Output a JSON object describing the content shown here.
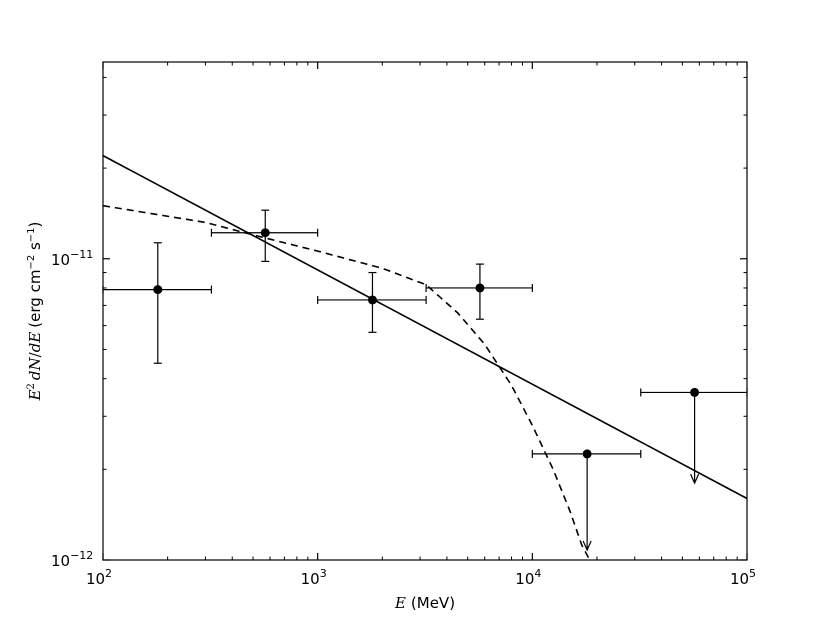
{
  "chart_data": {
    "type": "scatter",
    "title": "",
    "x_scale": "log",
    "y_scale": "log",
    "xlim": [
      100,
      100000
    ],
    "ylim": [
      1e-12,
      4.5e-11
    ],
    "grid": false,
    "x_ticks": [
      {
        "value": 100,
        "base": "10",
        "exp": "2"
      },
      {
        "value": 1000,
        "base": "10",
        "exp": "3"
      },
      {
        "value": 10000,
        "base": "10",
        "exp": "4"
      },
      {
        "value": 100000,
        "base": "10",
        "exp": "5"
      }
    ],
    "y_ticks": [
      {
        "value": 1e-12,
        "base": "10",
        "exp": "−12"
      },
      {
        "value": 1e-11,
        "base": "10",
        "exp": "−11"
      }
    ],
    "xlabel": {
      "symbol": "E",
      "unit": "(MeV)"
    },
    "ylabel": {
      "E": "E",
      "sq": "2",
      "dN": "dN",
      "slash": "/",
      "dE": "dE",
      "unit_pre": "(erg cm",
      "exp1": "−2",
      "unit_mid": " s",
      "exp2": "−1",
      "unit_post": ")"
    },
    "points": [
      {
        "x": 180,
        "y": 7.9e-12,
        "xlo": 100,
        "xhi": 320,
        "ylo": 4.5e-12,
        "yhi": 1.13e-11
      },
      {
        "x": 570,
        "y": 1.22e-11,
        "xlo": 320,
        "xhi": 1000,
        "ylo": 9.8e-12,
        "yhi": 1.45e-11
      },
      {
        "x": 1800,
        "y": 7.3e-12,
        "xlo": 1000,
        "xhi": 3200,
        "ylo": 5.7e-12,
        "yhi": 9e-12
      },
      {
        "x": 5700,
        "y": 8e-12,
        "xlo": 3200,
        "xhi": 10000,
        "ylo": 6.3e-12,
        "yhi": 9.6e-12
      }
    ],
    "upper_limits": [
      {
        "x": 18000,
        "y": 2.25e-12,
        "xlo": 10000,
        "xhi": 32000,
        "arrow_to": 1e-12
      },
      {
        "x": 57000,
        "y": 3.6e-12,
        "xlo": 32000,
        "xhi": 100000,
        "arrow_to": 1.8e-12
      }
    ],
    "power_law": {
      "style": "solid",
      "x": [
        100,
        100000
      ],
      "y": [
        2.2e-11,
        1.6e-12
      ]
    },
    "curved_fit": {
      "style": "dashed",
      "x": [
        100,
        300,
        500,
        1000,
        2000,
        3200,
        4500,
        6000,
        8000,
        10000,
        12500,
        15000,
        17000,
        18500
      ],
      "y": [
        1.5e-11,
        1.32e-11,
        1.2e-11,
        1.06e-11,
        9.3e-12,
        8.2e-12,
        6.6e-12,
        5.2e-12,
        3.8e-12,
        2.8e-12,
        2e-12,
        1.45e-12,
        1.12e-12,
        1e-12
      ]
    }
  }
}
